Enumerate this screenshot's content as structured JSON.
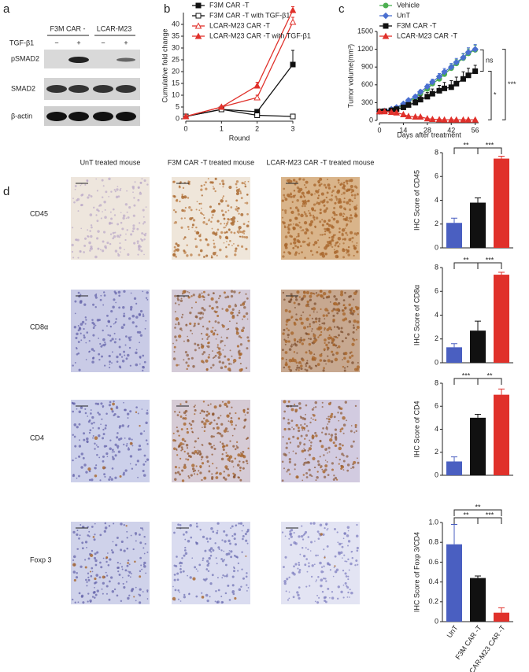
{
  "panel_labels": [
    "a",
    "b",
    "c",
    "d"
  ],
  "blot": {
    "groups": [
      "F3M CAR -",
      "LCAR-M23"
    ],
    "treatment": "TGF-β1",
    "signs": [
      "−",
      "+",
      "−",
      "+"
    ],
    "rows": [
      "pSMAD2",
      "SMAD2",
      "β-actin"
    ]
  },
  "ihc": {
    "columns": [
      "UnT treated mouse",
      "F3M CAR -T  treated mouse",
      "LCAR-M23 CAR -T treated mouse"
    ],
    "rows": [
      "CD45",
      "CD8α",
      "CD4",
      "Foxp 3"
    ]
  },
  "chart_data": [
    {
      "type": "line",
      "ylabel": "Cumulative fold change",
      "xlabel": "Round",
      "x": [
        0,
        1,
        2,
        3
      ],
      "xlim": [
        0,
        3
      ],
      "xticks": [
        0,
        1,
        2,
        3
      ],
      "ylim": [
        0,
        45
      ],
      "yticks": [
        0,
        5,
        10,
        15,
        20,
        25,
        30,
        35,
        40
      ],
      "series": [
        {
          "name": "F3M CAR -T",
          "color": "#111111",
          "marker": "square",
          "values": [
            1,
            4,
            3,
            23
          ],
          "errors": [
            0,
            0.5,
            0.5,
            6
          ]
        },
        {
          "name": "F3M CAR -T with TGF-β1",
          "color": "#111111",
          "marker": "open-square",
          "values": [
            1,
            4,
            1.5,
            1
          ],
          "errors": [
            0,
            0.5,
            0.3,
            0.5
          ]
        },
        {
          "name": "LCAR-M23 CAR -T",
          "color": "#e0312b",
          "marker": "open-triangle",
          "values": [
            1,
            5,
            9,
            41
          ],
          "errors": [
            0,
            0.5,
            1,
            2
          ]
        },
        {
          "name": "LCAR-M23 CAR -T with TGF-β1",
          "color": "#e0312b",
          "marker": "triangle",
          "values": [
            1,
            5,
            14,
            46
          ],
          "errors": [
            0,
            0.5,
            1.5,
            1.5
          ]
        }
      ]
    },
    {
      "type": "line",
      "ylabel": "Tumor volume(mm³)",
      "xlabel": "Days after treatment",
      "x": [
        0,
        3,
        7,
        10,
        14,
        17,
        21,
        24,
        28,
        31,
        35,
        38,
        42,
        45,
        49,
        52,
        56
      ],
      "xlim": [
        0,
        58
      ],
      "xticks": [
        0,
        14,
        28,
        42,
        56
      ],
      "ylim": [
        0,
        1500
      ],
      "yticks": [
        0,
        300,
        600,
        900,
        1200,
        1500
      ],
      "annotations": [
        "ns",
        "***",
        "*"
      ],
      "series": [
        {
          "name": "Vehicle",
          "color": "#4caf50",
          "marker": "circle",
          "values": [
            150,
            160,
            180,
            200,
            260,
            320,
            380,
            450,
            530,
            620,
            700,
            780,
            880,
            960,
            1050,
            1130,
            1190
          ],
          "errors": [
            10,
            10,
            15,
            15,
            20,
            25,
            30,
            35,
            40,
            45,
            50,
            55,
            60,
            65,
            70,
            75,
            80
          ]
        },
        {
          "name": "UnT",
          "color": "#4a6fd0",
          "marker": "diamond",
          "values": [
            150,
            160,
            190,
            220,
            280,
            340,
            400,
            480,
            570,
            650,
            740,
            820,
            900,
            980,
            1060,
            1150,
            1200
          ],
          "errors": [
            10,
            10,
            15,
            15,
            20,
            25,
            30,
            35,
            40,
            45,
            50,
            55,
            60,
            65,
            70,
            75,
            80
          ]
        },
        {
          "name": "F3M CAR -T",
          "color": "#111111",
          "marker": "square",
          "values": [
            150,
            155,
            170,
            190,
            220,
            260,
            300,
            350,
            400,
            450,
            500,
            540,
            560,
            620,
            700,
            760,
            830
          ],
          "errors": [
            10,
            10,
            15,
            20,
            30,
            40,
            50,
            60,
            70,
            80,
            90,
            100,
            110,
            110,
            120,
            120,
            100
          ]
        },
        {
          "name": "LCAR-M23 CAR -T",
          "color": "#e0312b",
          "marker": "triangle",
          "values": [
            150,
            150,
            140,
            130,
            100,
            70,
            60,
            60,
            30,
            20,
            15,
            10,
            10,
            10,
            10,
            10,
            10
          ],
          "errors": [
            10,
            10,
            10,
            10,
            10,
            10,
            10,
            10,
            5,
            5,
            5,
            5,
            5,
            5,
            5,
            5,
            5
          ]
        }
      ]
    },
    {
      "type": "bar",
      "ylabel": "IHC Score of CD45",
      "categories": [
        null,
        null,
        null
      ],
      "colors": [
        "#4a5fc1",
        "#111111",
        "#e0312b"
      ],
      "values": [
        2.1,
        3.8,
        7.5
      ],
      "errors": [
        0.4,
        0.4,
        0.2
      ],
      "ylim": [
        0,
        8
      ],
      "yticks": [
        0,
        2,
        4,
        6,
        8
      ],
      "annotations": [
        "**",
        "***"
      ]
    },
    {
      "type": "bar",
      "ylabel": "IHC Score of CD8α",
      "categories": [
        null,
        null,
        null
      ],
      "colors": [
        "#4a5fc1",
        "#111111",
        "#e0312b"
      ],
      "values": [
        1.3,
        2.7,
        7.4
      ],
      "errors": [
        0.3,
        0.8,
        0.2
      ],
      "ylim": [
        0,
        8
      ],
      "yticks": [
        0,
        2,
        4,
        6,
        8
      ],
      "annotations": [
        "**",
        "***"
      ]
    },
    {
      "type": "bar",
      "ylabel": "IHC Score of CD4",
      "categories": [
        null,
        null,
        null
      ],
      "colors": [
        "#4a5fc1",
        "#111111",
        "#e0312b"
      ],
      "values": [
        1.2,
        5.0,
        7.0
      ],
      "errors": [
        0.4,
        0.3,
        0.5
      ],
      "ylim": [
        0,
        8
      ],
      "yticks": [
        0,
        2,
        4,
        6,
        8
      ],
      "annotations": [
        "***",
        "**"
      ]
    },
    {
      "type": "bar",
      "ylabel": "IHC Score of Foxp 3/CD4",
      "categories": [
        "UnT",
        "F3M CAR -T",
        "LCAR-M23 CAR -T"
      ],
      "colors": [
        "#4a5fc1",
        "#111111",
        "#e0312b"
      ],
      "values": [
        0.78,
        0.44,
        0.09
      ],
      "errors": [
        0.2,
        0.02,
        0.05
      ],
      "ylim": [
        0,
        1
      ],
      "yticks": [
        0,
        0.2,
        0.4,
        0.6,
        0.8,
        {
          "value": 1,
          "label": "1.0"
        }
      ],
      "annotations": [
        "**",
        "***",
        "**"
      ]
    }
  ]
}
